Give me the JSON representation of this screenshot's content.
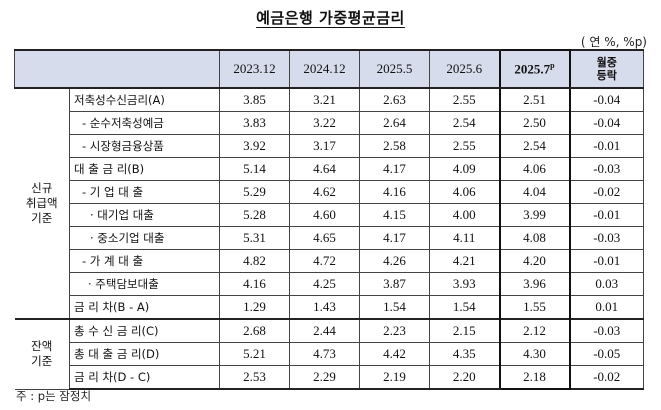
{
  "title": "예금은행 가중평균금리",
  "unit": "( 연 %, %p)",
  "header": {
    "columns": [
      "2023.12",
      "2024.12",
      "2025.5",
      "2025.6"
    ],
    "latest_base": "2025.7",
    "latest_sup": "p",
    "mom_line1": "월중",
    "mom_line2": "등락"
  },
  "groups": {
    "new": [
      "신규",
      "취급액",
      "기준"
    ],
    "balance": [
      "잔액",
      "기준"
    ]
  },
  "rows": [
    {
      "label": "저축성수신금리(A)",
      "values": [
        "3.85",
        "3.21",
        "2.63",
        "2.55",
        "2.51",
        "-0.04"
      ]
    },
    {
      "label": "- 순수저축성예금",
      "values": [
        "3.83",
        "3.22",
        "2.64",
        "2.54",
        "2.50",
        "-0.04"
      ]
    },
    {
      "label": "- 시장형금융상품",
      "values": [
        "3.92",
        "3.17",
        "2.58",
        "2.55",
        "2.54",
        "-0.01"
      ]
    },
    {
      "label": "대 출 금 리(B)",
      "values": [
        "5.14",
        "4.64",
        "4.17",
        "4.09",
        "4.06",
        "-0.03"
      ]
    },
    {
      "label": "- 기 업 대 출",
      "values": [
        "5.29",
        "4.62",
        "4.16",
        "4.06",
        "4.04",
        "-0.02"
      ]
    },
    {
      "label": "· 대기업 대출",
      "values": [
        "5.28",
        "4.60",
        "4.15",
        "4.00",
        "3.99",
        "-0.01"
      ]
    },
    {
      "label": "· 중소기업 대출",
      "values": [
        "5.31",
        "4.65",
        "4.17",
        "4.11",
        "4.08",
        "-0.03"
      ]
    },
    {
      "label": "- 가 계 대 출",
      "values": [
        "4.82",
        "4.72",
        "4.26",
        "4.21",
        "4.20",
        "-0.01"
      ]
    },
    {
      "label": "· 주택담보대출",
      "values": [
        "4.16",
        "4.25",
        "3.87",
        "3.93",
        "3.96",
        "0.03"
      ]
    },
    {
      "label": "금 리 차(B - A)",
      "values": [
        "1.29",
        "1.43",
        "1.54",
        "1.54",
        "1.55",
        "0.01"
      ]
    },
    {
      "label": "총 수 신 금 리(C)",
      "values": [
        "2.68",
        "2.44",
        "2.23",
        "2.15",
        "2.12",
        "-0.03"
      ]
    },
    {
      "label": "총 대 출 금 리(D)",
      "values": [
        "5.21",
        "4.73",
        "4.42",
        "4.35",
        "4.30",
        "-0.05"
      ]
    },
    {
      "label": "금 리 차(D - C)",
      "values": [
        "2.53",
        "2.29",
        "2.19",
        "2.20",
        "2.18",
        "-0.02"
      ]
    }
  ],
  "note": "주 : p는 잠정치"
}
